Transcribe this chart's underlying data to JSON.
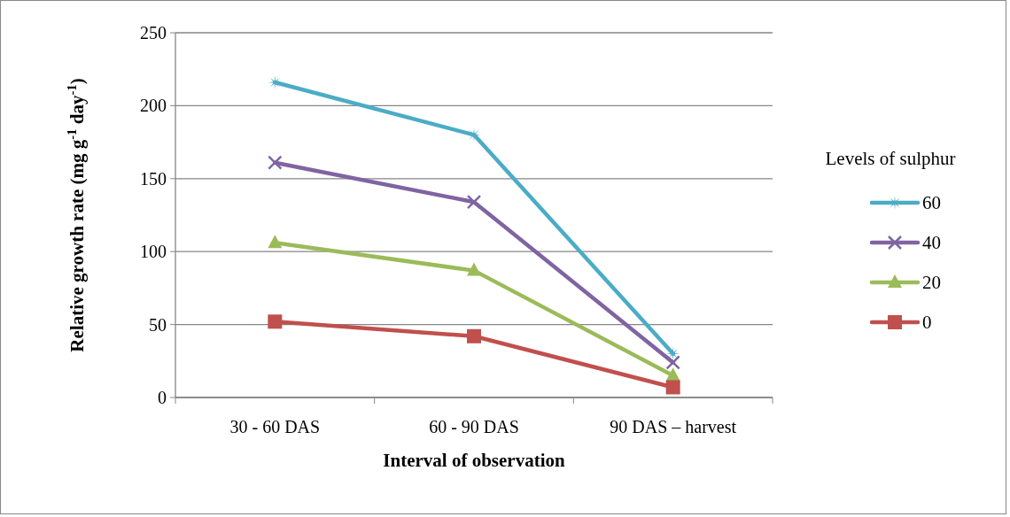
{
  "chart_data": {
    "type": "line",
    "xlabel": "Interval of observation",
    "ylabel": "Relative growth rate (mg g$^{-1}$ day$^{-1}$)",
    "legend_title": "Levels of sulphur",
    "categories": [
      "30 - 60 DAS",
      "60 - 90 DAS",
      "90 DAS – harvest"
    ],
    "ylim": [
      0,
      250
    ],
    "yticks": [
      0,
      50,
      100,
      150,
      200,
      250
    ],
    "grid": "y",
    "legend": "right",
    "line_style": "solid",
    "series": [
      {
        "name": "60",
        "color": "#4bacc6",
        "marker": "star",
        "values": [
          216,
          180,
          30
        ]
      },
      {
        "name": "40",
        "color": "#8064a2",
        "marker": "cross",
        "values": [
          161,
          134,
          24
        ]
      },
      {
        "name": "20",
        "color": "#9bbb59",
        "marker": "triangle",
        "values": [
          106,
          87,
          15
        ]
      },
      {
        "name": "0",
        "color": "#c0504d",
        "marker": "square",
        "values": [
          52,
          42,
          7
        ]
      }
    ]
  }
}
